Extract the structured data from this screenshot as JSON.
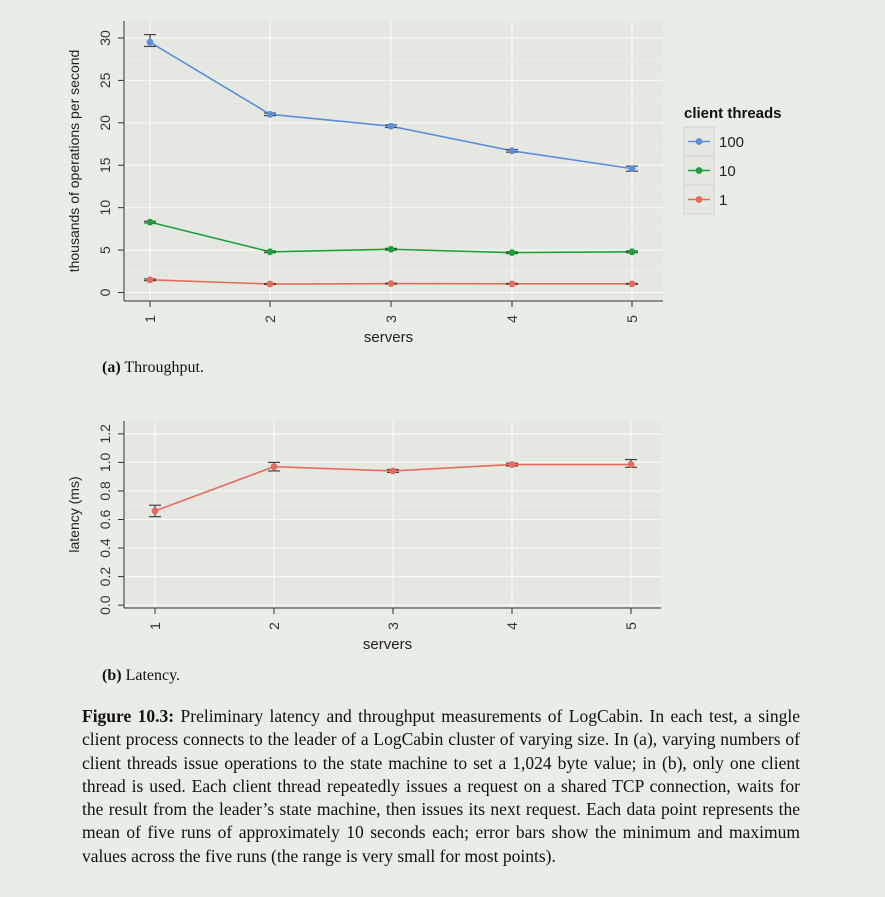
{
  "chart_data": [
    {
      "id": "throughput",
      "type": "line",
      "xlabel": "servers",
      "ylabel": "thousands of operations per second",
      "x": [
        1,
        2,
        3,
        4,
        5
      ],
      "xticks": [
        "1",
        "2",
        "3",
        "4",
        "5"
      ],
      "ylim": [
        -1,
        32
      ],
      "yticks": [
        "0",
        "5",
        "10",
        "15",
        "20",
        "25",
        "30"
      ],
      "yticks_values": [
        0,
        5,
        10,
        15,
        20,
        25,
        30
      ],
      "grid": true,
      "legend": {
        "title": "client threads",
        "placement": "right",
        "entries": [
          "100",
          "10",
          "1"
        ]
      },
      "series": [
        {
          "name": "100",
          "color": "#5b8ee0",
          "values": [
            29.5,
            21.0,
            19.6,
            16.7,
            14.6
          ],
          "err_min": [
            29.0,
            20.85,
            19.45,
            16.55,
            14.3
          ],
          "err_max": [
            30.4,
            21.15,
            19.75,
            16.85,
            14.9
          ]
        },
        {
          "name": "10",
          "color": "#1aa33a",
          "values": [
            8.3,
            4.8,
            5.1,
            4.7,
            4.8
          ],
          "err_min": [
            8.2,
            4.7,
            5.0,
            4.6,
            4.7
          ],
          "err_max": [
            8.4,
            4.9,
            5.2,
            4.8,
            4.9
          ]
        },
        {
          "name": "1",
          "color": "#e86a5e",
          "values": [
            1.5,
            1.0,
            1.05,
            1.02,
            1.02
          ],
          "err_min": [
            1.4,
            0.95,
            1.0,
            0.97,
            0.97
          ],
          "err_max": [
            1.6,
            1.05,
            1.1,
            1.07,
            1.07
          ]
        }
      ]
    },
    {
      "id": "latency",
      "type": "line",
      "xlabel": "servers",
      "ylabel": "latency (ms)",
      "x": [
        1,
        2,
        3,
        4,
        5
      ],
      "xticks": [
        "1",
        "2",
        "3",
        "4",
        "5"
      ],
      "ylim": [
        -0.02,
        1.29
      ],
      "yticks": [
        "0.0",
        "0.2",
        "0.4",
        "0.6",
        "0.8",
        "1.0",
        "1.2"
      ],
      "yticks_values": [
        0.0,
        0.2,
        0.4,
        0.6,
        0.8,
        1.0,
        1.2
      ],
      "grid": true,
      "series": [
        {
          "color": "#e86a5e",
          "values": [
            0.66,
            0.97,
            0.94,
            0.985,
            0.985
          ],
          "err_min": [
            0.62,
            0.94,
            0.93,
            0.975,
            0.965
          ],
          "err_max": [
            0.7,
            1.0,
            0.95,
            0.995,
            1.02
          ]
        }
      ]
    }
  ],
  "subcaptions": {
    "a_label": "(a)",
    "a_text": " Throughput.",
    "b_label": "(b)",
    "b_text": " Latency."
  },
  "caption": {
    "label": "Figure 10.3:",
    "text": " Preliminary latency and throughput measurements of LogCabin. In each test, a single client process connects to the leader of a LogCabin cluster of varying size. In (a), varying numbers of client threads issue operations to the state machine to set a 1,024 byte value; in (b), only one client thread is used. Each client thread repeatedly issues a request on a shared TCP connection, waits for the result from the leader’s state machine, then issues its next request. Each data point represents the mean of five runs of approximately 10 seconds each; error bars show the minimum and maximum values across the five runs (the range is very small for most points)."
  }
}
